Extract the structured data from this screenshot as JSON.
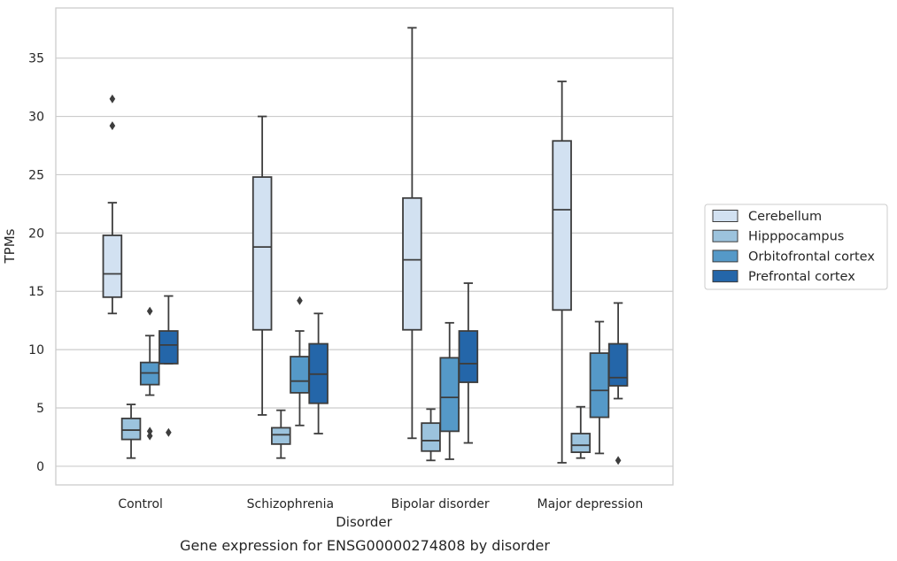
{
  "chart_data": {
    "type": "boxplot",
    "title": "Gene expression for ENSG00000274808 by disorder",
    "xlabel": "Disorder",
    "ylabel": "TPMs",
    "ylim": [
      -1.6,
      39.3
    ],
    "yticks": [
      0,
      5,
      10,
      15,
      20,
      25,
      30,
      35
    ],
    "grid": "horizontal",
    "legend_position": "right",
    "categories": [
      "Control",
      "Schizophrenia",
      "Bipolar disorder",
      "Major depression"
    ],
    "series": [
      {
        "name": "Cerebellum",
        "color": "#d2e1f1",
        "boxes": [
          {
            "whisker_low": 13.1,
            "q1": 14.5,
            "median": 16.5,
            "q3": 19.8,
            "whisker_high": 22.6,
            "outliers": [
              29.2,
              31.5
            ]
          },
          {
            "whisker_low": 4.4,
            "q1": 11.7,
            "median": 18.8,
            "q3": 24.8,
            "whisker_high": 30.0,
            "outliers": []
          },
          {
            "whisker_low": 2.4,
            "q1": 11.7,
            "median": 17.7,
            "q3": 23.0,
            "whisker_high": 37.6,
            "outliers": []
          },
          {
            "whisker_low": 0.3,
            "q1": 13.4,
            "median": 22.0,
            "q3": 27.9,
            "whisker_high": 33.0,
            "outliers": []
          }
        ]
      },
      {
        "name": "Hipppocampus",
        "color": "#9cc3dd",
        "boxes": [
          {
            "whisker_low": 0.7,
            "q1": 2.3,
            "median": 3.1,
            "q3": 4.1,
            "whisker_high": 5.3,
            "outliers": []
          },
          {
            "whisker_low": 0.7,
            "q1": 1.9,
            "median": 2.7,
            "q3": 3.3,
            "whisker_high": 4.8,
            "outliers": []
          },
          {
            "whisker_low": 0.5,
            "q1": 1.3,
            "median": 2.2,
            "q3": 3.7,
            "whisker_high": 4.9,
            "outliers": []
          },
          {
            "whisker_low": 0.7,
            "q1": 1.2,
            "median": 1.8,
            "q3": 2.8,
            "whisker_high": 5.1,
            "outliers": []
          }
        ]
      },
      {
        "name": "Orbitofrontal cortex",
        "color": "#5599c8",
        "boxes": [
          {
            "whisker_low": 6.1,
            "q1": 7.0,
            "median": 8.0,
            "q3": 8.9,
            "whisker_high": 11.2,
            "outliers": [
              13.3,
              2.6,
              3.0
            ]
          },
          {
            "whisker_low": 3.5,
            "q1": 6.3,
            "median": 7.3,
            "q3": 9.4,
            "whisker_high": 11.6,
            "outliers": [
              14.2
            ]
          },
          {
            "whisker_low": 0.6,
            "q1": 3.0,
            "median": 5.9,
            "q3": 9.3,
            "whisker_high": 12.3,
            "outliers": []
          },
          {
            "whisker_low": 1.1,
            "q1": 4.2,
            "median": 6.5,
            "q3": 9.7,
            "whisker_high": 12.4,
            "outliers": []
          }
        ]
      },
      {
        "name": "Prefrontal cortex",
        "color": "#2466a9",
        "boxes": [
          {
            "whisker_low": 8.8,
            "q1": 8.8,
            "median": 10.4,
            "q3": 11.6,
            "whisker_high": 14.6,
            "outliers": [
              2.9
            ]
          },
          {
            "whisker_low": 2.8,
            "q1": 5.4,
            "median": 7.9,
            "q3": 10.5,
            "whisker_high": 13.1,
            "outliers": []
          },
          {
            "whisker_low": 2.0,
            "q1": 7.2,
            "median": 8.8,
            "q3": 11.6,
            "whisker_high": 15.7,
            "outliers": []
          },
          {
            "whisker_low": 5.8,
            "q1": 6.9,
            "median": 7.6,
            "q3": 10.5,
            "whisker_high": 14.0,
            "outliers": [
              0.5
            ]
          }
        ]
      }
    ]
  }
}
